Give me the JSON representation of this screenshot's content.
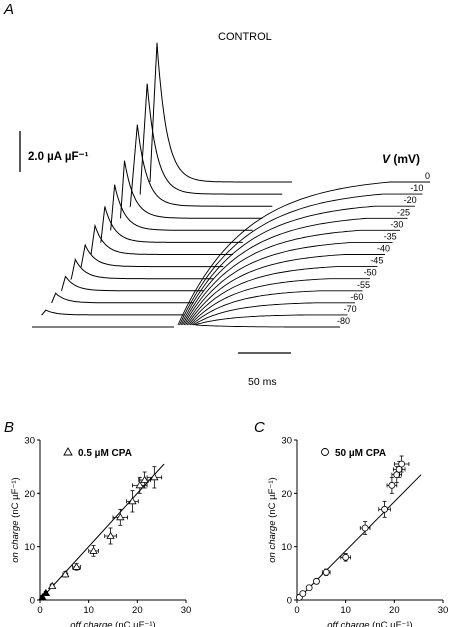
{
  "figure": {
    "panels": {
      "a": "A",
      "b": "B",
      "c": "C"
    }
  },
  "chart_data": [
    {
      "type": "line",
      "panel": "A",
      "title": "CONTROL",
      "scale_bar_y": "2.0 µA µF⁻¹",
      "scale_bar_x": "50 ms",
      "voltage_label": "V",
      "voltage_unit": "(mV)",
      "series": [
        {
          "name": "0",
          "on_peak": 5.8,
          "off_plateau": 0
        },
        {
          "name": "-10",
          "on_peak": 4.6,
          "off_plateau": 0
        },
        {
          "name": "-20",
          "on_peak": 3.4,
          "off_plateau": 0
        },
        {
          "name": "-25",
          "on_peak": 2.4,
          "off_plateau": 0
        },
        {
          "name": "-30",
          "on_peak": 1.9,
          "off_plateau": 0
        },
        {
          "name": "-35",
          "on_peak": 1.5,
          "off_plateau": 0
        },
        {
          "name": "-40",
          "on_peak": 1.2,
          "off_plateau": 0
        },
        {
          "name": "-45",
          "on_peak": 0.9,
          "off_plateau": 0
        },
        {
          "name": "-50",
          "on_peak": 0.8,
          "off_plateau": 0
        },
        {
          "name": "-55",
          "on_peak": 0.6,
          "off_plateau": 0
        },
        {
          "name": "-60",
          "on_peak": 0.4,
          "off_plateau": 0
        },
        {
          "name": "-70",
          "on_peak": 0.2,
          "off_plateau": 0
        },
        {
          "name": "-80",
          "on_peak": 0.0,
          "off_plateau": 0
        }
      ]
    },
    {
      "type": "scatter",
      "panel": "B",
      "legend": "0.5 µM CPA",
      "xlabel_italic": "off charge",
      "xlabel_unit": "(nC µF⁻¹)",
      "ylabel_italic": "on charge",
      "ylabel_unit": "(nC µF⁻¹)",
      "xlim": [
        0,
        30
      ],
      "ylim": [
        0,
        30
      ],
      "xticks": [
        0,
        10,
        20,
        30
      ],
      "yticks": [
        0,
        10,
        20,
        30
      ],
      "points": [
        {
          "x": 0.5,
          "y": 0.5,
          "xe": 0.3,
          "ye": 0.3
        },
        {
          "x": 1.2,
          "y": 1.3,
          "xe": 0.3,
          "ye": 0.3
        },
        {
          "x": 2.5,
          "y": 2.6,
          "xe": 0.4,
          "ye": 0.4
        },
        {
          "x": 5.2,
          "y": 4.8,
          "xe": 0.5,
          "ye": 0.5
        },
        {
          "x": 7.5,
          "y": 6.2,
          "xe": 0.8,
          "ye": 0.6
        },
        {
          "x": 11.0,
          "y": 9.2,
          "xe": 1.0,
          "ye": 1.0
        },
        {
          "x": 14.5,
          "y": 12.0,
          "xe": 1.2,
          "ye": 1.5
        },
        {
          "x": 16.5,
          "y": 15.5,
          "xe": 1.5,
          "ye": 1.5
        },
        {
          "x": 19.0,
          "y": 18.5,
          "xe": 1.2,
          "ye": 2.0
        },
        {
          "x": 20.5,
          "y": 21.5,
          "xe": 1.5,
          "ye": 1.5
        },
        {
          "x": 21.5,
          "y": 22.5,
          "xe": 1.2,
          "ye": 1.5
        },
        {
          "x": 23.5,
          "y": 23.0,
          "xe": 1.5,
          "ye": 2.0
        }
      ],
      "fit": {
        "x": [
          0,
          25.5
        ],
        "y": [
          0,
          25.5
        ]
      }
    },
    {
      "type": "scatter",
      "panel": "C",
      "legend": "50 µM CPA",
      "xlabel_italic": "off charge",
      "xlabel_unit": "(nC µF⁻¹)",
      "ylabel_italic": "on charge",
      "ylabel_unit": "(nC µF⁻¹)",
      "xlim": [
        0,
        30
      ],
      "ylim": [
        0,
        30
      ],
      "xticks": [
        0,
        10,
        20,
        30
      ],
      "yticks": [
        0,
        10,
        20,
        30
      ],
      "points": [
        {
          "x": 0.5,
          "y": 0.5,
          "xe": 0.3,
          "ye": 0.3
        },
        {
          "x": 1.2,
          "y": 1.2,
          "xe": 0.3,
          "ye": 0.3
        },
        {
          "x": 2.5,
          "y": 2.3,
          "xe": 0.4,
          "ye": 0.4
        },
        {
          "x": 4.0,
          "y": 3.5,
          "xe": 0.5,
          "ye": 0.5
        },
        {
          "x": 6.0,
          "y": 5.2,
          "xe": 0.8,
          "ye": 0.6
        },
        {
          "x": 10.0,
          "y": 8.0,
          "xe": 1.0,
          "ye": 0.7
        },
        {
          "x": 14.0,
          "y": 13.5,
          "xe": 1.0,
          "ye": 1.2
        },
        {
          "x": 18.0,
          "y": 17.0,
          "xe": 1.2,
          "ye": 1.5
        },
        {
          "x": 19.5,
          "y": 21.5,
          "xe": 1.0,
          "ye": 1.5
        },
        {
          "x": 20.5,
          "y": 23.5,
          "xe": 1.0,
          "ye": 1.5
        },
        {
          "x": 21.0,
          "y": 24.5,
          "xe": 1.2,
          "ye": 1.5
        },
        {
          "x": 21.5,
          "y": 25.5,
          "xe": 1.5,
          "ye": 1.5
        }
      ],
      "fit": {
        "x": [
          0,
          25.5
        ],
        "y": [
          0,
          23.5
        ]
      }
    }
  ]
}
